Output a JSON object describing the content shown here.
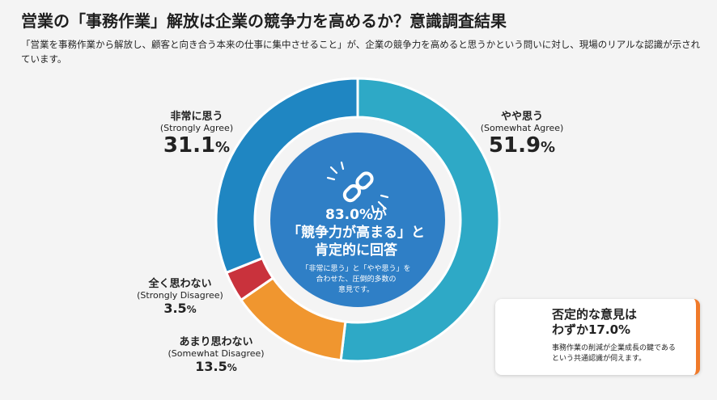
{
  "title": "営業の「事務作業」解放は企業の競争力を高めるか？意識調査結果",
  "subtitle": "「営業を事務作業から解放し、顧客と向き合う本来の仕事に集中させること」が、企業の競争力を高めると思うかという問いに対し、現場のリアルな認識が示されています。",
  "chart_data": {
    "type": "pie",
    "title": "",
    "categories": [
      "やや思う",
      "あまり思わない",
      "全く思わない",
      "非常に思う"
    ],
    "categories_en": [
      "Somewhat Agree",
      "Somewhat Disagree",
      "Strongly Disagree",
      "Strongly Agree"
    ],
    "values": [
      51.9,
      13.5,
      3.5,
      31.1
    ],
    "colors": [
      "#2ea9c6",
      "#f0962f",
      "#c9323c",
      "#1f86c2"
    ],
    "start_angle_deg": 0,
    "inner_color": "#2f7fc6"
  },
  "labels": {
    "strongly_agree": {
      "jp": "非常に思う",
      "en": "(Strongly Agree)",
      "num": "31.1",
      "unit": "%"
    },
    "somewhat_agree": {
      "jp": "やや思う",
      "en": "(Somewhat Agree)",
      "num": "51.9",
      "unit": "%"
    },
    "strongly_disagree": {
      "jp": "全く思わない",
      "en": "(Strongly Disagree)",
      "num": "3.5",
      "unit": "%"
    },
    "somewhat_disagree": {
      "jp": "あまり思わない",
      "en": "(Somewhat Disagree)",
      "num": "13.5",
      "unit": "%"
    }
  },
  "center": {
    "line1": "83.0%が",
    "line2": "「競争力が高まる」と",
    "line3": "肯定的に回答",
    "note1": "「非常に思う」と「やや思う」を",
    "note2": "合わせた、圧倒的多数の",
    "note3": "意見です。",
    "icon": "link-icon"
  },
  "callout": {
    "head1": "否定的な意見は",
    "head2": "わずか17.0%",
    "body1": "事務作業の削減が企業成長の鍵である",
    "body2": "という共通認識が伺えます。",
    "accent": "#f07a2a"
  }
}
